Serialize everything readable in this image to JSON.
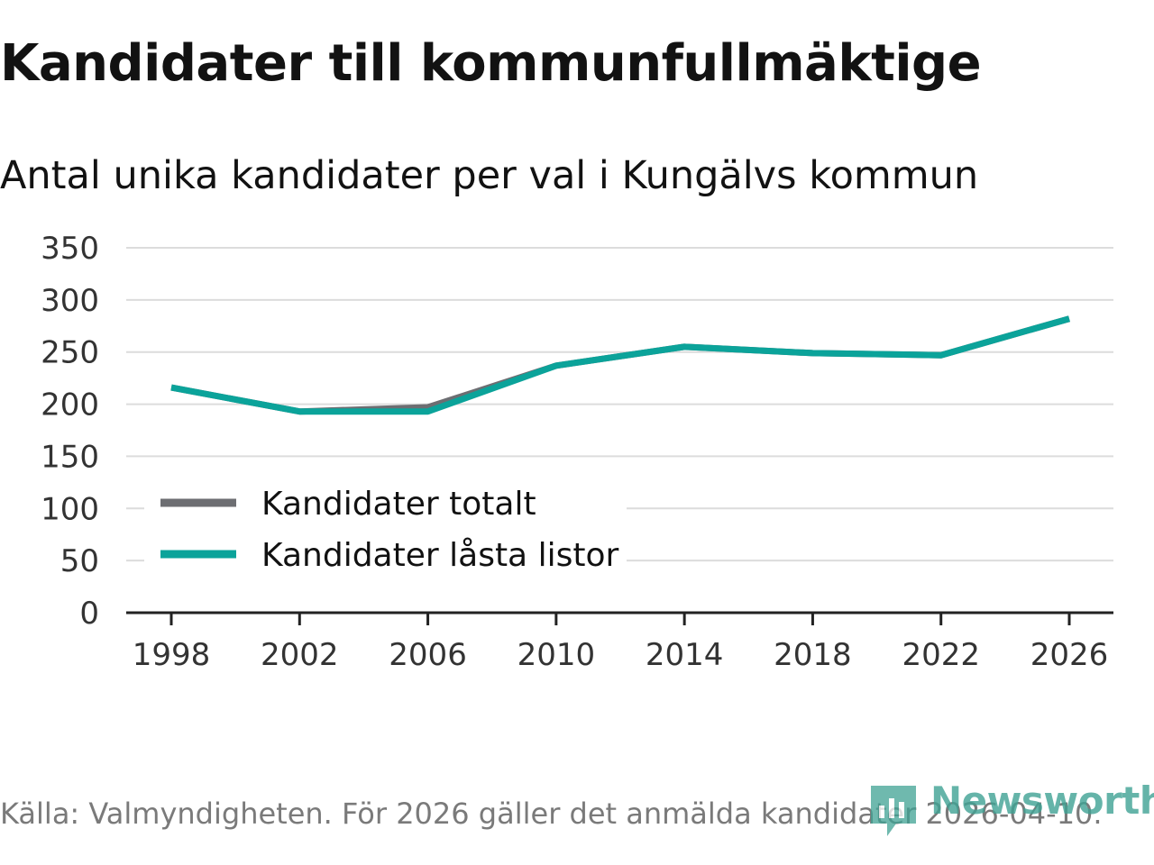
{
  "title": "Kandidater till kommunfullmäktige",
  "subtitle": "Antal unika kandidater per val i Kungälvs kommun",
  "source": "Källa: Valmyndigheten. För 2026 gäller det anmälda kandidater 2026-04-10.",
  "logo": {
    "text": "Newsworthy",
    "icon": "bar-chart-icon"
  },
  "colors": {
    "total": "#6d6e72",
    "locked": "#0ba39a",
    "grid": "#dcdcdc",
    "axis": "#222222"
  },
  "chart_data": {
    "type": "line",
    "title": "Kandidater till kommunfullmäktige",
    "subtitle": "Antal unika kandidater per val i Kungälvs kommun",
    "x": [
      1998,
      2002,
      2006,
      2010,
      2014,
      2018,
      2022,
      2026
    ],
    "x_ticks": [
      "1998",
      "2002",
      "2006",
      "2010",
      "2014",
      "2018",
      "2022",
      "2026"
    ],
    "y_ticks": [
      "0",
      "50",
      "100",
      "150",
      "200",
      "250",
      "300",
      "350"
    ],
    "ylim": [
      0,
      350
    ],
    "xlabel": "",
    "ylabel": "",
    "grid": true,
    "legend_position": "lower-left",
    "series": [
      {
        "name": "Kandidater totalt",
        "values": [
          216,
          193,
          197,
          237,
          255,
          249,
          247,
          282
        ]
      },
      {
        "name": "Kandidater låsta listor",
        "values": [
          216,
          193,
          193,
          237,
          255,
          249,
          247,
          282
        ]
      }
    ]
  }
}
